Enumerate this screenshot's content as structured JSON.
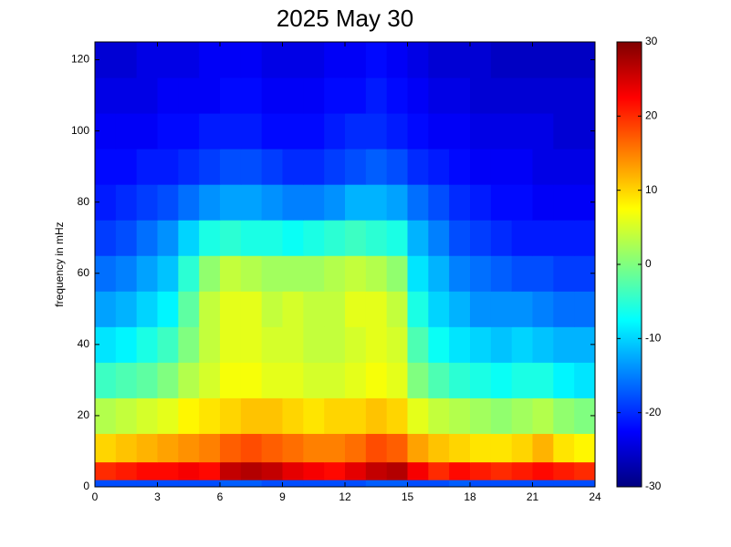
{
  "chart_data": {
    "type": "heatmap",
    "title": "2025 May 30",
    "ylabel": "frequency in mHz",
    "x_edges": [
      0,
      1,
      2,
      3,
      4,
      5,
      6,
      7,
      8,
      9,
      10,
      11,
      12,
      13,
      14,
      15,
      16,
      17,
      18,
      19,
      20,
      21,
      22,
      23,
      24
    ],
    "y_edges": [
      0,
      2,
      7,
      15,
      25,
      35,
      45,
      55,
      65,
      75,
      85,
      95,
      105,
      115,
      125
    ],
    "z": [
      [
        -18,
        -18,
        -18,
        -18,
        -18,
        -18,
        -17,
        -17,
        -18,
        -18,
        -18,
        -18,
        -18,
        -17,
        -17,
        -18,
        -18,
        -17,
        -18,
        -18,
        -18,
        -18,
        -18,
        -18
      ],
      [
        20,
        21,
        22,
        22,
        23,
        22,
        26,
        27,
        26,
        24,
        23,
        22,
        24,
        26,
        27,
        23,
        20,
        22,
        21,
        20,
        21,
        22,
        21,
        20
      ],
      [
        10,
        11,
        12,
        13,
        14,
        15,
        17,
        18,
        17,
        16,
        15,
        15,
        16,
        18,
        17,
        13,
        11,
        10,
        9,
        9,
        10,
        12,
        9,
        8
      ],
      [
        3,
        4,
        5,
        6,
        8,
        9,
        10,
        11,
        11,
        10,
        9,
        10,
        10,
        11,
        10,
        6,
        4,
        3,
        2,
        1,
        2,
        3,
        1,
        0
      ],
      [
        -4,
        -3,
        -2,
        0,
        3,
        5,
        7,
        7,
        6,
        6,
        5,
        5,
        6,
        7,
        6,
        0,
        -3,
        -5,
        -6,
        -7,
        -6,
        -6,
        -8,
        -9
      ],
      [
        -9,
        -8,
        -6,
        -4,
        0,
        4,
        6,
        6,
        5,
        5,
        4,
        4,
        5,
        6,
        5,
        -3,
        -7,
        -9,
        -10,
        -11,
        -10,
        -11,
        -12,
        -12
      ],
      [
        -13,
        -12,
        -10,
        -8,
        -2,
        4,
        6,
        6,
        4,
        5,
        4,
        4,
        6,
        6,
        4,
        -6,
        -10,
        -12,
        -14,
        -14,
        -14,
        -15,
        -16,
        -16
      ],
      [
        -16,
        -15,
        -13,
        -11,
        -5,
        1,
        4,
        3,
        2,
        2,
        2,
        3,
        4,
        3,
        1,
        -9,
        -12,
        -15,
        -16,
        -17,
        -18,
        -18,
        -19,
        -19
      ],
      [
        -19,
        -18,
        -16,
        -14,
        -10,
        -6,
        -5,
        -6,
        -6,
        -7,
        -6,
        -5,
        -4,
        -5,
        -6,
        -12,
        -15,
        -18,
        -19,
        -20,
        -21,
        -21,
        -21,
        -21
      ],
      [
        -21,
        -20,
        -19,
        -18,
        -16,
        -14,
        -13,
        -13,
        -14,
        -15,
        -15,
        -14,
        -12,
        -12,
        -13,
        -16,
        -18,
        -20,
        -21,
        -22,
        -22,
        -23,
        -23,
        -23
      ],
      [
        -22,
        -22,
        -21,
        -21,
        -20,
        -19,
        -18,
        -18,
        -19,
        -20,
        -20,
        -19,
        -18,
        -17,
        -18,
        -20,
        -21,
        -22,
        -23,
        -23,
        -23,
        -24,
        -24,
        -24
      ],
      [
        -23,
        -23,
        -23,
        -22,
        -22,
        -21,
        -21,
        -21,
        -22,
        -22,
        -22,
        -21,
        -20,
        -20,
        -21,
        -22,
        -23,
        -23,
        -24,
        -24,
        -24,
        -24,
        -25,
        -25
      ],
      [
        -24,
        -24,
        -24,
        -23,
        -23,
        -23,
        -22,
        -22,
        -23,
        -23,
        -23,
        -22,
        -22,
        -21,
        -22,
        -23,
        -24,
        -24,
        -25,
        -25,
        -25,
        -25,
        -25,
        -25
      ],
      [
        -25,
        -25,
        -24,
        -24,
        -24,
        -23,
        -23,
        -23,
        -24,
        -24,
        -24,
        -23,
        -23,
        -22,
        -23,
        -24,
        -25,
        -25,
        -25,
        -26,
        -26,
        -26,
        -26,
        -26
      ]
    ],
    "xlim": [
      0,
      24
    ],
    "xticks": [
      0,
      3,
      6,
      9,
      12,
      15,
      18,
      21,
      24
    ],
    "ylim": [
      0,
      125
    ],
    "yticks": [
      0,
      20,
      40,
      60,
      80,
      100,
      120
    ],
    "zlim": [
      -30,
      30
    ],
    "zticks": [
      -30,
      -20,
      -10,
      0,
      10,
      20,
      30
    ],
    "colormap": "jet"
  }
}
